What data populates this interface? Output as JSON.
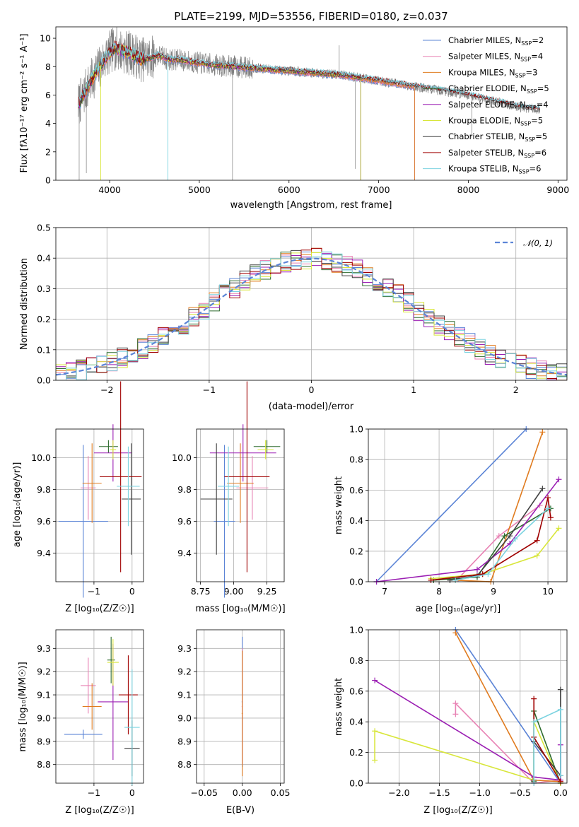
{
  "colors": [
    "#5b84d6",
    "#e882b4",
    "#e07b1f",
    "#2e6b2e",
    "#9b1fb3",
    "#d8e63a",
    "#404040",
    "#a00000",
    "#7bd3e0"
  ],
  "chart_data": [
    {
      "id": "spectrum",
      "type": "line",
      "title": "PLATE=2199, MJD=53556, FIBERID=0180, z=0.037",
      "xlabel": "wavelength [Angstrom, rest frame]",
      "ylabel": "Flux [fλ10⁻¹⁷ erg cm⁻² s⁻¹ A⁻¹]",
      "xlim": [
        3400,
        9100
      ],
      "ylim": [
        0,
        10.8
      ],
      "xticks": [
        "4000",
        "5000",
        "6000",
        "7000",
        "8000",
        "9000"
      ],
      "yticks": [
        "0",
        "2",
        "4",
        "6",
        "8",
        "10"
      ],
      "x": [
        3650,
        3750,
        3850,
        3950,
        4050,
        4150,
        4250,
        4350,
        4450,
        4550,
        4650,
        4750,
        4850,
        4950,
        5050,
        5200,
        5400,
        5600,
        5800,
        6000,
        6200,
        6400,
        6600,
        6800,
        7000,
        7200,
        7400,
        7600,
        7800,
        8000,
        8200,
        8400,
        8600,
        8800
      ],
      "series": [
        {
          "name": "Chabrier MILES, N$_{SSP}$=2",
          "end": 7400
        },
        {
          "name": "Salpeter MILES, N$_{SSP}$=4",
          "end": 7400
        },
        {
          "name": "Kroupa MILES, N$_{SSP}$=3",
          "end": 7400
        },
        {
          "name": "Chabrier ELODIE, N$_{SSP}$=5",
          "end": 6800
        },
        {
          "name": "Salpeter ELODIE, N$_{SSP}$=4",
          "end": 6800
        },
        {
          "name": "Kroupa ELODIE, N$_{SSP}$=5",
          "end": 6800
        },
        {
          "name": "Chabrier STELIB, N$_{SSP}$=5",
          "end": 8800
        },
        {
          "name": "Salpeter STELIB, N$_{SSP}$=6",
          "end": 8800
        },
        {
          "name": "Kroupa STELIB, N$_{SSP}$=6",
          "end": 8800
        }
      ],
      "values": [
        5.3,
        6.5,
        7.6,
        8.6,
        9.3,
        9.1,
        8.9,
        8.5,
        8.6,
        8.8,
        8.5,
        8.5,
        8.4,
        8.3,
        8.2,
        8.1,
        8.0,
        7.9,
        7.8,
        7.7,
        7.6,
        7.5,
        7.4,
        7.2,
        7.0,
        6.8,
        6.6,
        6.4,
        6.2,
        6.0,
        5.7,
        5.4,
        5.1,
        5.0
      ],
      "legend": "top-right"
    },
    {
      "id": "residuals",
      "type": "line",
      "xlabel": "(data-model)/error",
      "ylabel": "Normed distribution",
      "xlim": [
        -2.5,
        2.5
      ],
      "ylim": [
        0,
        0.5
      ],
      "xticks": [
        "−2",
        "−1",
        "0",
        "1",
        "2"
      ],
      "yticks": [
        "0.0",
        "0.1",
        "0.2",
        "0.3",
        "0.4",
        "0.5"
      ],
      "reference": {
        "name": "𝒩(0, 1)",
        "mu": 0,
        "sigma": 1
      },
      "bin_width": 0.1,
      "legend": "top-right"
    },
    {
      "id": "age-vs-Z",
      "type": "scatter",
      "xlabel": "Z [log₁₀(Z/Z☉)]",
      "ylabel": "age  [log₁₀(age/yr)]",
      "xlim": [
        -2.0,
        0.3
      ],
      "ylim": [
        9.22,
        10.18
      ],
      "xticks": [
        "−1",
        "0"
      ],
      "yticks": [
        "9.4",
        "9.6",
        "9.8",
        "10.0"
      ],
      "points": [
        {
          "x": -1.28,
          "y": 9.6,
          "xerr": 0.65,
          "yerr": 0.48
        },
        {
          "x": -1.15,
          "y": 9.81,
          "xerr": 0.2,
          "yerr": 0.2
        },
        {
          "x": -1.05,
          "y": 9.84,
          "xerr": 0.25,
          "yerr": 0.25
        },
        {
          "x": -0.62,
          "y": 10.07,
          "xerr": 0.25,
          "yerr": 0.04
        },
        {
          "x": -0.5,
          "y": 10.03,
          "xerr": 0.5,
          "yerr": 0.18
        },
        {
          "x": -0.5,
          "y": 10.05,
          "xerr": 0.08,
          "yerr": 0.06
        },
        {
          "x": -0.02,
          "y": 9.74,
          "xerr": 0.25,
          "yerr": 0.35
        },
        {
          "x": -0.3,
          "y": 9.88,
          "xerr": 0.55,
          "yerr": 0.6
        },
        {
          "x": -0.1,
          "y": 9.82,
          "xerr": 0.3,
          "yerr": 0.25
        }
      ]
    },
    {
      "id": "age-vs-mass",
      "type": "scatter",
      "xlabel": "mass [log₁₀(M/M☉)]",
      "ylabel": "",
      "xlim": [
        8.72,
        9.38
      ],
      "ylim": [
        9.22,
        10.18
      ],
      "xticks": [
        "8.75",
        "9.00",
        "9.25"
      ],
      "yticks": [
        "9.4",
        "9.6",
        "9.8",
        "10.0"
      ],
      "points": [
        {
          "x": 8.93,
          "y": 9.6,
          "xerr": 0.08,
          "yerr": 0.48
        },
        {
          "x": 9.14,
          "y": 9.81,
          "xerr": 0.12,
          "yerr": 0.2
        },
        {
          "x": 9.05,
          "y": 9.84,
          "xerr": 0.1,
          "yerr": 0.25
        },
        {
          "x": 9.25,
          "y": 10.07,
          "xerr": 0.1,
          "yerr": 0.04
        },
        {
          "x": 9.07,
          "y": 10.03,
          "xerr": 0.25,
          "yerr": 0.18
        },
        {
          "x": 9.24,
          "y": 10.05,
          "xerr": 0.06,
          "yerr": 0.06
        },
        {
          "x": 8.87,
          "y": 9.74,
          "xerr": 0.12,
          "yerr": 0.35
        },
        {
          "x": 9.1,
          "y": 9.88,
          "xerr": 0.17,
          "yerr": 0.6
        },
        {
          "x": 8.96,
          "y": 9.82,
          "xerr": 0.08,
          "yerr": 0.25
        }
      ]
    },
    {
      "id": "weight-vs-age",
      "type": "line",
      "xlabel": "age  [log₁₀(age/yr)]",
      "ylabel": "mass weight",
      "xlim": [
        6.7,
        10.35
      ],
      "ylim": [
        0,
        1.0
      ],
      "xticks": [
        "7",
        "8",
        "9",
        "10"
      ],
      "yticks": [
        "0.0",
        "0.2",
        "0.4",
        "0.6",
        "0.8",
        "1.0"
      ],
      "series": [
        {
          "x": [
            6.85,
            9.6
          ],
          "y": [
            0.0,
            1.0
          ]
        },
        {
          "x": [
            8.35,
            9.1,
            9.85
          ],
          "y": [
            0.02,
            0.3,
            0.5
          ]
        },
        {
          "x": [
            8.3,
            8.95,
            9.9
          ],
          "y": [
            0.01,
            0.0,
            0.98
          ]
        },
        {
          "x": [
            7.9,
            8.7,
            9.2,
            10.05
          ],
          "y": [
            0.01,
            0.03,
            0.3,
            0.48
          ]
        },
        {
          "x": [
            6.85,
            8.7,
            9.3,
            10.2
          ],
          "y": [
            0.0,
            0.08,
            0.25,
            0.67
          ]
        },
        {
          "x": [
            7.85,
            8.8,
            9.8,
            10.2
          ],
          "y": [
            0.02,
            0.05,
            0.17,
            0.35
          ]
        },
        {
          "x": [
            8.2,
            8.7,
            9.3,
            9.9
          ],
          "y": [
            0.01,
            0.04,
            0.3,
            0.61
          ]
        },
        {
          "x": [
            7.85,
            8.8,
            9.8,
            10.0,
            10.05
          ],
          "y": [
            0.01,
            0.05,
            0.27,
            0.55,
            0.42
          ]
        },
        {
          "x": [
            8.3,
            8.9,
            9.4,
            10.0
          ],
          "y": [
            0.01,
            0.05,
            0.28,
            0.48
          ]
        }
      ]
    },
    {
      "id": "mass-vs-Z",
      "type": "scatter",
      "xlabel": "Z [log₁₀(Z/Z☉)]",
      "ylabel": "mass [log₁₀(M/M☉)]",
      "xlim": [
        -2.0,
        0.3
      ],
      "ylim": [
        8.72,
        9.38
      ],
      "xticks": [
        "−1",
        "0"
      ],
      "yticks": [
        "8.8",
        "8.9",
        "9.0",
        "9.1",
        "9.2",
        "9.3"
      ],
      "points": [
        {
          "x": -1.28,
          "y": 8.93,
          "xerr": 0.5,
          "yerr": 0.02
        },
        {
          "x": -1.15,
          "y": 9.14,
          "xerr": 0.2,
          "yerr": 0.12
        },
        {
          "x": -1.05,
          "y": 9.05,
          "xerr": 0.25,
          "yerr": 0.1
        },
        {
          "x": -0.55,
          "y": 9.25,
          "xerr": 0.1,
          "yerr": 0.1
        },
        {
          "x": -0.5,
          "y": 9.07,
          "xerr": 0.4,
          "yerr": 0.25
        },
        {
          "x": -0.5,
          "y": 9.24,
          "xerr": 0.15,
          "yerr": 0.1
        },
        {
          "x": 0.0,
          "y": 8.87,
          "xerr": 0.2,
          "yerr": 0.12
        },
        {
          "x": -0.1,
          "y": 9.1,
          "xerr": 0.25,
          "yerr": 0.17
        },
        {
          "x": 0.0,
          "y": 8.96,
          "xerr": 0.2,
          "yerr": 0.25
        }
      ]
    },
    {
      "id": "mass-vs-EBV",
      "type": "scatter",
      "xlabel": "E(B-V)",
      "ylabel": "",
      "xlim": [
        -0.06,
        0.055
      ],
      "ylim": [
        8.72,
        9.38
      ],
      "xticks": [
        "−0.05",
        "0.00",
        "0.05"
      ],
      "yticks": [
        "8.8",
        "8.9",
        "9.0",
        "9.1",
        "9.2",
        "9.3"
      ],
      "points": [
        {
          "x": 0.0,
          "y": 9.07,
          "xerr": 0.0008,
          "yerr": 0.28
        },
        {
          "x": 0.0,
          "y": 9.05,
          "xerr": 0.0008,
          "yerr": 0.25
        },
        {
          "x": 0.0,
          "y": 9.02,
          "xerr": 0.0008,
          "yerr": 0.27
        }
      ]
    },
    {
      "id": "weight-vs-Z",
      "type": "line",
      "xlabel": "Z [log₁₀(Z/Z☉)]",
      "ylabel": "mass weight",
      "xlim": [
        -2.38,
        0.08
      ],
      "ylim": [
        0,
        1.0
      ],
      "xticks": [
        "−2.0",
        "−1.5",
        "−1.0",
        "−0.5",
        "0.0"
      ],
      "yticks": [
        "0.0",
        "0.2",
        "0.4",
        "0.6",
        "0.8",
        "1.0"
      ],
      "series": [
        {
          "x": [
            -1.3,
            0.0
          ],
          "y": [
            1.0,
            0.0
          ]
        },
        {
          "x": [
            -1.3,
            -1.3,
            -0.33,
            0.0
          ],
          "y": [
            0.45,
            0.52,
            0.0,
            0.02
          ]
        },
        {
          "x": [
            -1.3,
            -0.33,
            0.0
          ],
          "y": [
            0.98,
            0.02,
            0.01
          ]
        },
        {
          "x": [
            -0.33,
            -0.33,
            0.0
          ],
          "y": [
            0.01,
            0.47,
            0.0
          ]
        },
        {
          "x": [
            -2.3,
            -0.33,
            0.0,
            0.0
          ],
          "y": [
            0.67,
            0.04,
            0.02,
            0.25
          ]
        },
        {
          "x": [
            -2.3,
            -2.3,
            -0.33,
            -0.33,
            0.0
          ],
          "y": [
            0.15,
            0.34,
            0.02,
            0.4,
            0.0
          ]
        },
        {
          "x": [
            -0.33,
            -0.33,
            0.0,
            0.0
          ],
          "y": [
            0.02,
            0.27,
            0.05,
            0.61
          ]
        },
        {
          "x": [
            -0.33,
            -0.33,
            0.0
          ],
          "y": [
            0.55,
            0.3,
            0.01
          ]
        },
        {
          "x": [
            -0.33,
            -0.33,
            0.0,
            0.0
          ],
          "y": [
            0.0,
            0.4,
            0.48,
            0.05
          ]
        }
      ]
    }
  ]
}
